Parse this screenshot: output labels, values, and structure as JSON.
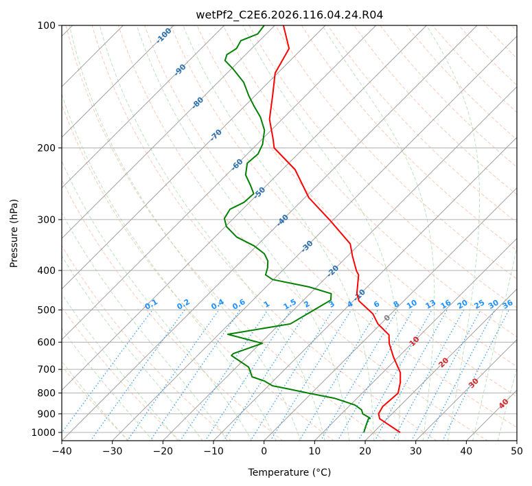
{
  "chart_data": {
    "type": "line",
    "subtype": "skew-t log-p",
    "title": "wetPf2_C2E6.2026.116.04.24.R04",
    "xlabel": "Temperature (°C)",
    "ylabel": "Pressure (hPa)",
    "xlim": [
      -40,
      50
    ],
    "ylim": [
      1050,
      100
    ],
    "x_ticks": [
      "−40",
      "−30",
      "−20",
      "−10",
      "0",
      "10",
      "20",
      "30",
      "40",
      "50"
    ],
    "x_tick_values": [
      -40,
      -30,
      -20,
      -10,
      0,
      10,
      20,
      30,
      40,
      50
    ],
    "y_ticks": [
      "100",
      "200",
      "300",
      "400",
      "500",
      "600",
      "700",
      "800",
      "900",
      "1000"
    ],
    "y_tick_values": [
      100,
      200,
      300,
      400,
      500,
      600,
      700,
      800,
      900,
      1000
    ],
    "grid": true,
    "isotherm_labels": [
      {
        "value": -100,
        "text": "-100"
      },
      {
        "value": -90,
        "text": "-90"
      },
      {
        "value": -80,
        "text": "-80"
      },
      {
        "value": -70,
        "text": "-70"
      },
      {
        "value": -60,
        "text": "-60"
      },
      {
        "value": -50,
        "text": "-50"
      },
      {
        "value": -40,
        "text": "-40"
      },
      {
        "value": -30,
        "text": "-30"
      },
      {
        "value": -20,
        "text": "-20"
      },
      {
        "value": -10,
        "text": "-10"
      },
      {
        "value": 0,
        "text": "0"
      },
      {
        "value": 10,
        "text": "10"
      },
      {
        "value": 20,
        "text": "20"
      },
      {
        "value": 30,
        "text": "30"
      },
      {
        "value": 40,
        "text": "40"
      }
    ],
    "mixing_ratio_labels": [
      "0.1",
      "0.2",
      "0.4",
      "0.6",
      "1",
      "1.5",
      "2",
      "3",
      "4",
      "6",
      "8",
      "10",
      "13",
      "16",
      "20",
      "25",
      "30",
      "36"
    ],
    "mixing_ratio_values": [
      0.1,
      0.2,
      0.4,
      0.6,
      1,
      1.5,
      2,
      3,
      4,
      6,
      8,
      10,
      13,
      16,
      20,
      25,
      30,
      36
    ],
    "series": [
      {
        "name": "temperature",
        "color": "#ff0000",
        "points": [
          [
            1000,
            25.3
          ],
          [
            925,
            18.5
          ],
          [
            899,
            17.3
          ],
          [
            863,
            16.7
          ],
          [
            801,
            17.1
          ],
          [
            753,
            15.4
          ],
          [
            713,
            13.5
          ],
          [
            652,
            9.0
          ],
          [
            604,
            5.5
          ],
          [
            576,
            3.8
          ],
          [
            541,
            -0.6
          ],
          [
            511,
            -3.6
          ],
          [
            475,
            -8.9
          ],
          [
            455,
            -10.8
          ],
          [
            410,
            -14.1
          ],
          [
            401,
            -15.3
          ],
          [
            369,
            -19.0
          ],
          [
            344,
            -21.9
          ],
          [
            300,
            -30.8
          ],
          [
            265,
            -39.2
          ],
          [
            226,
            -47.5
          ],
          [
            200,
            -55.9
          ],
          [
            190,
            -57.9
          ],
          [
            170,
            -62.5
          ],
          [
            149,
            -66.5
          ],
          [
            131,
            -70.5
          ],
          [
            114,
            -72.6
          ],
          [
            100,
            -78.3
          ]
        ]
      },
      {
        "name": "dewpoint",
        "color": "#008000",
        "points": [
          [
            1000,
            18.1
          ],
          [
            959,
            17.1
          ],
          [
            925,
            16.3
          ],
          [
            922,
            16.5
          ],
          [
            900,
            14.2
          ],
          [
            880,
            13.2
          ],
          [
            856,
            10.9
          ],
          [
            824,
            5.5
          ],
          [
            801,
            -0.5
          ],
          [
            780,
            -5.9
          ],
          [
            768,
            -9.2
          ],
          [
            747,
            -11.8
          ],
          [
            730,
            -15.0
          ],
          [
            713,
            -16.1
          ],
          [
            691,
            -17.6
          ],
          [
            673,
            -19.9
          ],
          [
            647,
            -23.3
          ],
          [
            640,
            -23.3
          ],
          [
            604,
            -19.6
          ],
          [
            574,
            -28.2
          ],
          [
            541,
            -17.9
          ],
          [
            497,
            -15.8
          ],
          [
            473,
            -14.6
          ],
          [
            456,
            -15.8
          ],
          [
            439,
            -21.5
          ],
          [
            421,
            -30.2
          ],
          [
            410,
            -32.5
          ],
          [
            394,
            -33.5
          ],
          [
            379,
            -34.8
          ],
          [
            364,
            -36.9
          ],
          [
            348,
            -40.5
          ],
          [
            331,
            -45.7
          ],
          [
            312,
            -49.8
          ],
          [
            298,
            -51.8
          ],
          [
            283,
            -52.5
          ],
          [
            272,
            -51.1
          ],
          [
            259,
            -50.9
          ],
          [
            247,
            -53.2
          ],
          [
            233,
            -56.2
          ],
          [
            218,
            -58.2
          ],
          [
            207,
            -57.9
          ],
          [
            196,
            -58.9
          ],
          [
            181,
            -61.3
          ],
          [
            168,
            -64.7
          ],
          [
            158,
            -68.1
          ],
          [
            149,
            -71.2
          ],
          [
            138,
            -74.9
          ],
          [
            128,
            -79.6
          ],
          [
            122,
            -82.9
          ],
          [
            118,
            -83.7
          ],
          [
            114,
            -83.0
          ],
          [
            109,
            -83.7
          ],
          [
            105,
            -81.7
          ],
          [
            100,
            -82.1
          ]
        ]
      }
    ],
    "colors": {
      "isotherm": "#a0a0a0",
      "isobar": "#b0b0b0",
      "dry_adiabat": "#f4a582",
      "moist_adiabat": "#9fd49f",
      "mixing_ratio": "#1e90ff",
      "label_cold": "#2a6fb0",
      "label_zero": "#808080",
      "label_warm": "#d62728"
    }
  }
}
